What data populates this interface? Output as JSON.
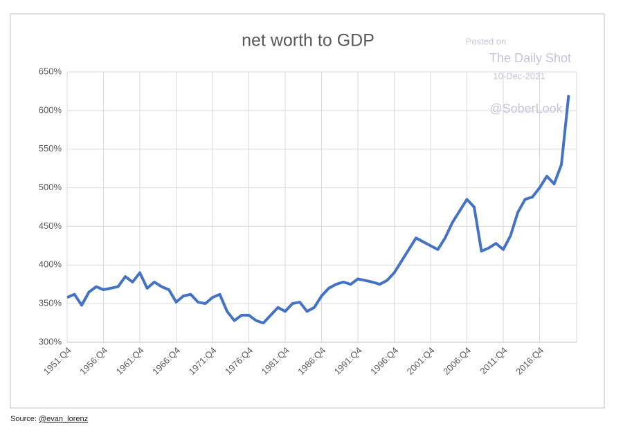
{
  "chart_data": {
    "type": "line",
    "title": "net worth to GDP",
    "annotations": [
      "Posted on",
      "The Daily Shot",
      "10-Dec-2021",
      "@SoberLook"
    ],
    "source": {
      "prefix": "Source:",
      "handle": "@evan_lorenz"
    },
    "categories": [
      "1951:Q4",
      null,
      null,
      null,
      null,
      "1956:Q4",
      null,
      null,
      null,
      null,
      "1961:Q4",
      null,
      null,
      null,
      null,
      "1966:Q4",
      null,
      null,
      null,
      null,
      "1971:Q4",
      null,
      null,
      null,
      null,
      "1976:Q4",
      null,
      null,
      null,
      null,
      "1981:Q4",
      null,
      null,
      null,
      null,
      "1986:Q4",
      null,
      null,
      null,
      null,
      "1991:Q4",
      null,
      null,
      null,
      null,
      "1996:Q4",
      null,
      null,
      null,
      null,
      "2001:Q4",
      null,
      null,
      null,
      null,
      "2006:Q4",
      null,
      null,
      null,
      null,
      "2011:Q4",
      null,
      null,
      null,
      null,
      "2016:Q4",
      null,
      null,
      null,
      null
    ],
    "series": [
      {
        "name": "net worth to GDP",
        "color": "#4472c4",
        "values": [
          358,
          362,
          348,
          365,
          372,
          368,
          370,
          372,
          385,
          378,
          390,
          370,
          378,
          372,
          368,
          352,
          360,
          362,
          352,
          350,
          358,
          362,
          340,
          328,
          335,
          335,
          328,
          325,
          335,
          345,
          340,
          350,
          352,
          340,
          345,
          360,
          370,
          375,
          378,
          375,
          382,
          380,
          378,
          375,
          380,
          390,
          405,
          420,
          435,
          430,
          425,
          420,
          435,
          455,
          470,
          485,
          475,
          418,
          422,
          428,
          420,
          438,
          468,
          485,
          488,
          500,
          515,
          505,
          530,
          620
        ]
      }
    ],
    "ylim": [
      300,
      650
    ],
    "yticks": [
      {
        "value": 300,
        "label": "300%"
      },
      {
        "value": 350,
        "label": "350%"
      },
      {
        "value": 400,
        "label": "400%"
      },
      {
        "value": 450,
        "label": "450%"
      },
      {
        "value": 500,
        "label": "500%"
      },
      {
        "value": 550,
        "label": "550%"
      },
      {
        "value": 600,
        "label": "600%"
      },
      {
        "value": 650,
        "label": "650%"
      }
    ],
    "grid": true
  }
}
